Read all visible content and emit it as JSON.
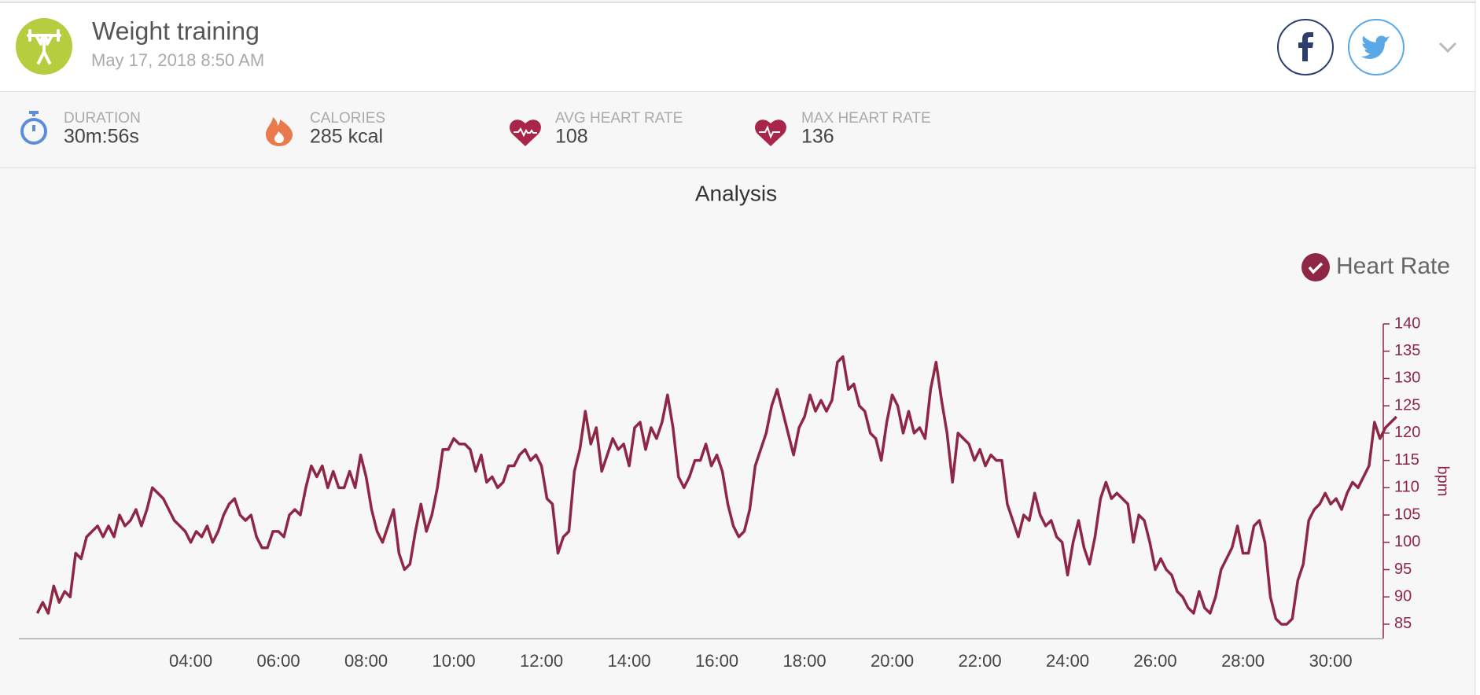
{
  "header": {
    "title": "Weight training",
    "date": "May 17, 2018 8:50 AM"
  },
  "stats": [
    {
      "label": "DURATION",
      "value": "30m:56s"
    },
    {
      "label": "CALORIES",
      "value": "285 kcal"
    },
    {
      "label": "AVG HEART RATE",
      "value": "108"
    },
    {
      "label": "MAX HEART RATE",
      "value": "136"
    }
  ],
  "chart_data": {
    "type": "line",
    "title": "Analysis",
    "ylabel": "bpm",
    "y_axis_side": "right",
    "legend": "top-right",
    "xlim": [
      0.08,
      31.2
    ],
    "ylim": [
      82.4,
      140
    ],
    "xticks": [
      {
        "value": 4,
        "label": "04:00"
      },
      {
        "value": 6,
        "label": "06:00"
      },
      {
        "value": 8,
        "label": "08:00"
      },
      {
        "value": 10,
        "label": "10:00"
      },
      {
        "value": 12,
        "label": "12:00"
      },
      {
        "value": 14,
        "label": "14:00"
      },
      {
        "value": 16,
        "label": "16:00"
      },
      {
        "value": 18,
        "label": "18:00"
      },
      {
        "value": 20,
        "label": "20:00"
      },
      {
        "value": 22,
        "label": "22:00"
      },
      {
        "value": 24,
        "label": "24:00"
      },
      {
        "value": 26,
        "label": "26:00"
      },
      {
        "value": 28,
        "label": "28:00"
      },
      {
        "value": 30,
        "label": "30:00"
      }
    ],
    "yticks": [
      85,
      90,
      95,
      100,
      105,
      110,
      115,
      120,
      125,
      130,
      135,
      140
    ],
    "x": [
      0.5,
      0.625,
      0.75,
      0.875,
      1,
      1.125,
      1.25,
      1.375,
      1.5,
      1.625,
      1.75,
      1.875,
      2,
      2.125,
      2.25,
      2.375,
      2.5,
      2.625,
      2.75,
      2.875,
      3,
      3.125,
      3.25,
      3.375,
      3.5,
      3.625,
      3.75,
      3.875,
      4,
      4.125,
      4.25,
      4.375,
      4.5,
      4.625,
      4.75,
      4.875,
      5,
      5.125,
      5.25,
      5.375,
      5.5,
      5.625,
      5.75,
      5.875,
      6,
      6.125,
      6.25,
      6.375,
      6.5,
      6.625,
      6.75,
      6.875,
      7,
      7.125,
      7.25,
      7.375,
      7.5,
      7.625,
      7.75,
      7.875,
      8,
      8.125,
      8.25,
      8.375,
      8.5,
      8.625,
      8.75,
      8.875,
      9,
      9.125,
      9.25,
      9.375,
      9.5,
      9.625,
      9.75,
      9.875,
      10,
      10.125,
      10.25,
      10.375,
      10.5,
      10.625,
      10.75,
      10.875,
      11,
      11.125,
      11.25,
      11.375,
      11.5,
      11.625,
      11.75,
      11.875,
      12,
      12.125,
      12.25,
      12.375,
      12.5,
      12.625,
      12.75,
      12.875,
      13,
      13.125,
      13.25,
      13.375,
      13.5,
      13.625,
      13.75,
      13.875,
      14,
      14.125,
      14.25,
      14.375,
      14.5,
      14.625,
      14.75,
      14.875,
      15,
      15.125,
      15.25,
      15.375,
      15.5,
      15.625,
      15.75,
      15.875,
      16,
      16.125,
      16.25,
      16.375,
      16.5,
      16.625,
      16.75,
      16.875,
      17,
      17.125,
      17.25,
      17.375,
      17.5,
      17.625,
      17.75,
      17.875,
      18,
      18.125,
      18.25,
      18.375,
      18.5,
      18.625,
      18.75,
      18.875,
      19,
      19.125,
      19.25,
      19.375,
      19.5,
      19.625,
      19.75,
      19.875,
      20,
      20.125,
      20.25,
      20.375,
      20.5,
      20.625,
      20.75,
      20.875,
      21,
      21.125,
      21.25,
      21.375,
      21.5,
      21.625,
      21.75,
      21.875,
      22,
      22.125,
      22.25,
      22.375,
      22.5,
      22.625,
      22.75,
      22.875,
      23,
      23.125,
      23.25,
      23.375,
      23.5,
      23.625,
      23.75,
      23.875,
      24,
      24.125,
      24.25,
      24.375,
      24.5,
      24.625,
      24.75,
      24.875,
      25,
      25.125,
      25.25,
      25.375,
      25.5,
      25.625,
      25.75,
      25.875,
      26,
      26.125,
      26.25,
      26.375,
      26.5,
      26.625,
      26.75,
      26.875,
      27,
      27.125,
      27.25,
      27.375,
      27.5,
      27.625,
      27.75,
      27.875,
      28,
      28.125,
      28.25,
      28.375,
      28.5,
      28.625,
      28.75,
      28.875,
      29,
      29.125,
      29.25,
      29.375,
      29.5,
      29.625,
      29.75,
      29.875,
      30,
      30.125,
      30.25,
      30.375,
      30.5,
      30.625,
      30.75,
      30.875,
      31,
      31.125,
      31.25,
      31.375,
      31.5
    ],
    "series": [
      {
        "name": "Heart Rate",
        "color": "#8e2645",
        "values": [
          87,
          89,
          87,
          92,
          89,
          91,
          90,
          98,
          97,
          101,
          102,
          103,
          101,
          103,
          101,
          105,
          103,
          104,
          106,
          103,
          106,
          110,
          109,
          108,
          106,
          104,
          103,
          102,
          100,
          102,
          101,
          103,
          100,
          102,
          105,
          107,
          108,
          105,
          104,
          105,
          101,
          99,
          99,
          102,
          102,
          101,
          105,
          106,
          105,
          110,
          114,
          112,
          114,
          110,
          113,
          110,
          110,
          113,
          110,
          116,
          112,
          106,
          102,
          100,
          103,
          106,
          98,
          95,
          96,
          102,
          107,
          102,
          105,
          110,
          117,
          117,
          119,
          118,
          118,
          117,
          113,
          116,
          111,
          112,
          110,
          111,
          114,
          114,
          116,
          117,
          115,
          116,
          114,
          108,
          107,
          98,
          101,
          102,
          113,
          117,
          124,
          118,
          121,
          113,
          116,
          119,
          117,
          118,
          114,
          121,
          122,
          117,
          121,
          119,
          122,
          127,
          121,
          112,
          110,
          112,
          115,
          115,
          118,
          114,
          116,
          113,
          107,
          103,
          101,
          102,
          106,
          114,
          117,
          120,
          125,
          128,
          124,
          120,
          116,
          121,
          123,
          127,
          124,
          126,
          124,
          126,
          133,
          134,
          128,
          129,
          125,
          124,
          120,
          119,
          115,
          122,
          127,
          125,
          120,
          124,
          120,
          121,
          119,
          128,
          133,
          126,
          120,
          111,
          120,
          119,
          118,
          115,
          117,
          114,
          116,
          115,
          115,
          107,
          104,
          101,
          105,
          104,
          109,
          105,
          103,
          104,
          101,
          100,
          94,
          100,
          104,
          99,
          96,
          101,
          108,
          111,
          108,
          109,
          108,
          107,
          100,
          105,
          104,
          100,
          95,
          97,
          95,
          94,
          91,
          90,
          88,
          87,
          91,
          88,
          87,
          90,
          95,
          97,
          99,
          103,
          98,
          98,
          103,
          104,
          100,
          90,
          86,
          85,
          85,
          86,
          93,
          96,
          104,
          106,
          107,
          109,
          107,
          108,
          106,
          109,
          111,
          110,
          112,
          114,
          122,
          119,
          121,
          122,
          123
        ]
      }
    ]
  }
}
